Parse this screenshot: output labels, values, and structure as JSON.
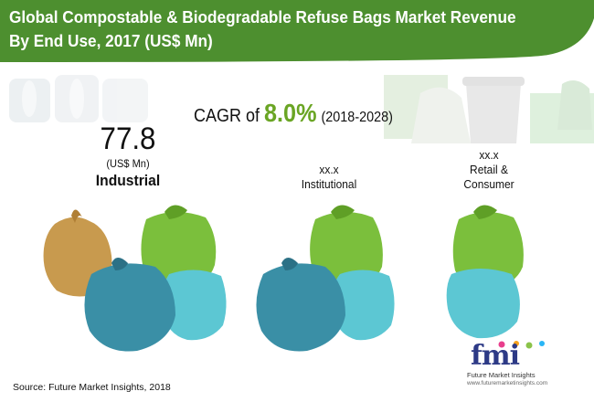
{
  "header": {
    "title_line1": "Global Compostable & Biodegradable Refuse Bags Market Revenue",
    "title_line2": "By End Use, 2017 (US$ Mn)"
  },
  "cagr": {
    "prefix": "CAGR of",
    "value": "8.0%",
    "period": "(2018-2028)"
  },
  "colors": {
    "banner": "#4d8f2f",
    "cagr_value": "#6aa524",
    "bag_green": "#7bbf3c",
    "bag_blue": "#3a8fa6",
    "bag_teal": "#5cc7d3",
    "bag_tan": "#c89a4e"
  },
  "chart_data": {
    "type": "bar",
    "title": "Global Compostable & Biodegradable Refuse Bags Market Revenue By End Use, 2017 (US$ Mn)",
    "categories": [
      "Industrial",
      "Institutional",
      "Retail & Consumer"
    ],
    "values": [
      77.8,
      null,
      null
    ],
    "value_labels": [
      "77.8",
      "xx.x",
      "xx.x"
    ],
    "unit": "(US$ Mn)",
    "icons": [
      "bag-cluster-4",
      "bag-cluster-3",
      "bag-cluster-2"
    ]
  },
  "labels": {
    "industrial_value": "77.8",
    "industrial_unit": "(US$ Mn)",
    "industrial_name": "Industrial",
    "institutional_value": "xx.x",
    "institutional_name": "Institutional",
    "retail_value": "xx.x",
    "retail_name_line1": "Retail &",
    "retail_name_line2": "Consumer"
  },
  "footer": {
    "source": "Source: Future Market Insights, 2018"
  },
  "logo": {
    "letters": "fmi",
    "name": "Future Market Insights",
    "url": "www.futuremarketinsights.com"
  }
}
